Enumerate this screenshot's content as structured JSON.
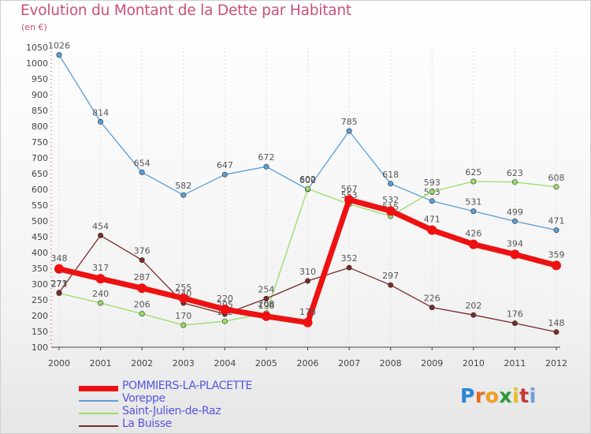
{
  "title": "Evolution du Montant de la Dette par Habitant",
  "unit": "(en €)",
  "logo": {
    "letters": [
      "P",
      "r",
      "o",
      "x",
      "i",
      "t",
      "i"
    ],
    "colors": [
      "#2a86d8",
      "#e86a1a",
      "#f0a020",
      "#2a9a3a",
      "#e8c020",
      "#c83a3a",
      "#6aa0e0"
    ]
  },
  "chart_data": {
    "type": "line",
    "title": "Evolution du Montant de la Dette par Habitant",
    "ylabel": "(en €)",
    "xlabel": "",
    "ylim": [
      100,
      1050
    ],
    "yticks": [
      100,
      150,
      200,
      250,
      300,
      350,
      400,
      450,
      500,
      550,
      600,
      650,
      700,
      750,
      800,
      850,
      900,
      950,
      1000,
      1050
    ],
    "categories": [
      "2000",
      "2001",
      "2002",
      "2003",
      "2004",
      "2005",
      "2006",
      "2007",
      "2008",
      "2009",
      "2010",
      "2011",
      "2012"
    ],
    "legend_position": "bottom-left",
    "series": [
      {
        "name": "POMMIERS-LA-PLACETTE",
        "color": "#ee1111",
        "values": [
          348,
          317,
          287,
          255,
          220,
          198,
          178,
          567,
          532,
          471,
          426,
          394,
          359
        ]
      },
      {
        "name": "Voreppe",
        "color": "#5a9ed6",
        "values": [
          1026,
          814,
          654,
          582,
          647,
          672,
          600,
          785,
          618,
          563,
          531,
          499,
          471
        ]
      },
      {
        "name": "Saint-Julien-de-Raz",
        "color": "#99dd66",
        "values": [
          271,
          240,
          206,
          170,
          182,
          208,
          602,
          553,
          515,
          593,
          625,
          623,
          608
        ]
      },
      {
        "name": "La Buisse",
        "color": "#7a2a2a",
        "values": [
          273,
          454,
          376,
          240,
          205,
          254,
          310,
          352,
          297,
          226,
          202,
          176,
          148
        ]
      }
    ]
  }
}
